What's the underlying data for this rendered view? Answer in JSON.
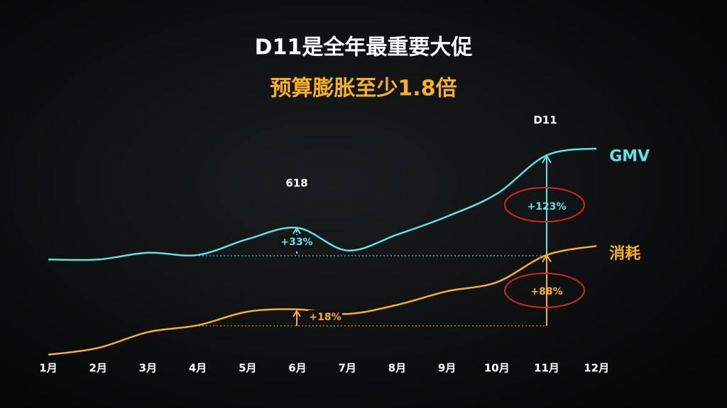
{
  "chart_data": {
    "type": "line",
    "title": "D11是全年最重要大促",
    "subtitle": "预算膨胀至少1.8倍",
    "categories": [
      "1月",
      "2月",
      "3月",
      "4月",
      "5月",
      "6月",
      "7月",
      "8月",
      "9月",
      "10月",
      "11月",
      "12月"
    ],
    "series": [
      {
        "name": "GMV",
        "color": "#5fe3e6",
        "values": [
          48,
          48,
          51,
          50,
          57,
          62,
          52,
          59,
          67,
          77,
          94,
          97
        ]
      },
      {
        "name": "消耗",
        "color": "#f7b21e",
        "values": [
          6,
          9,
          16,
          19,
          25,
          26,
          24,
          28,
          34,
          38,
          50,
          54
        ]
      }
    ],
    "ylim": [
      0,
      100
    ],
    "annotations": [
      "618",
      "D11",
      "+33%",
      "+123%",
      "+18%",
      "+88%"
    ]
  }
}
